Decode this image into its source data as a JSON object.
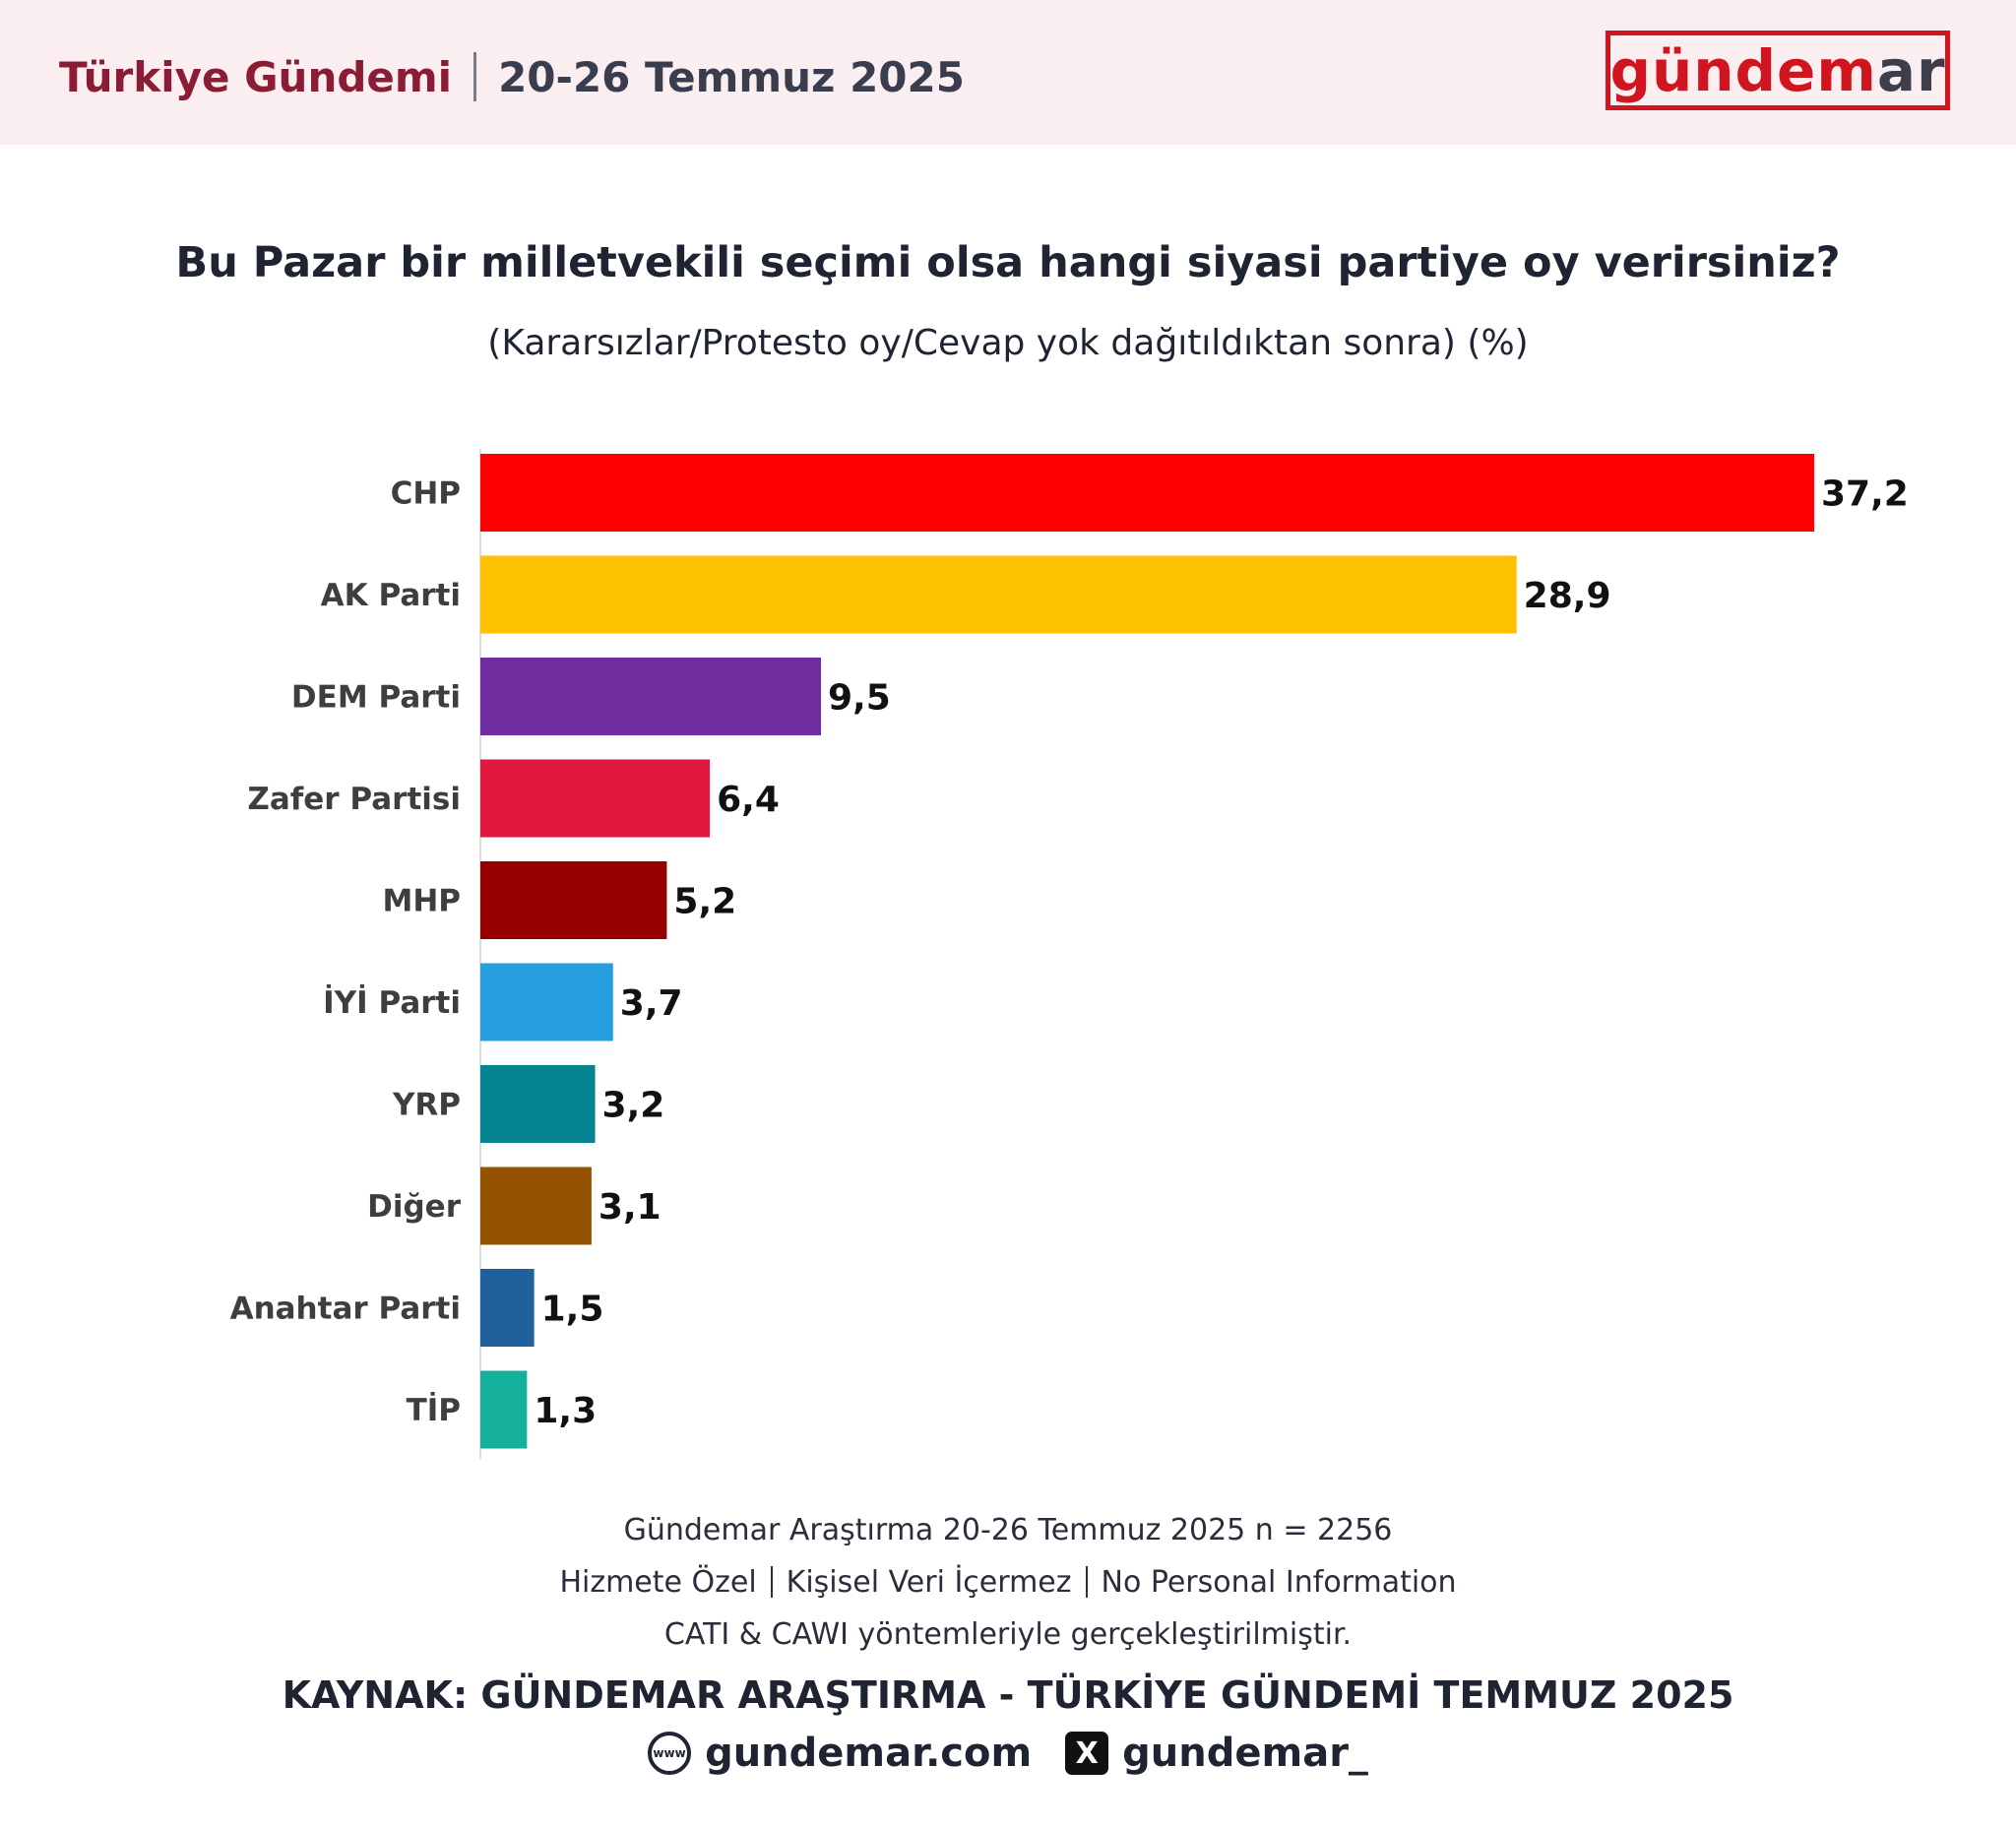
{
  "header": {
    "title": "Türkiye Gündemi",
    "date": "20-26 Temmuz 2025",
    "logo_part1": "gündem",
    "logo_part2": "ar"
  },
  "question": {
    "title": "Bu Pazar bir milletvekili seçimi olsa hangi siyasi partiye oy verirsiniz?",
    "subtitle": "(Kararsızlar/Protesto oy/Cevap yok dağıtıldıktan sonra) (%)"
  },
  "chart_data": {
    "type": "bar",
    "orientation": "horizontal",
    "title": "Bu Pazar bir milletvekili seçimi olsa hangi siyasi partiye oy verirsiniz?",
    "subtitle": "(Kararsızlar/Protesto oy/Cevap yok dağıtıldıktan sonra) (%)",
    "categories": [
      "CHP",
      "AK Parti",
      "DEM Parti",
      "Zafer Partisi",
      "MHP",
      "İYİ Parti",
      "YRP",
      "Diğer",
      "Anahtar Parti",
      "TİP"
    ],
    "values": [
      37.2,
      28.9,
      9.5,
      6.4,
      5.2,
      3.7,
      3.2,
      3.1,
      1.5,
      1.3
    ],
    "value_labels": [
      "37,2",
      "28,9",
      "9,5",
      "6,4",
      "5,2",
      "3,7",
      "3,2",
      "3,1",
      "1,5",
      "1,3"
    ],
    "colors": [
      "#fe0000",
      "#fec200",
      "#6f2da0",
      "#e0173f",
      "#960000",
      "#259fdd",
      "#04858f",
      "#945301",
      "#20609c",
      "#15b09b"
    ],
    "xlim": [
      0,
      37.2
    ],
    "xlabel": "",
    "ylabel": "",
    "grid": false,
    "legend": "none"
  },
  "footer": {
    "line1": "Gündemar Araştırma 20-26 Temmuz 2025 n = 2256",
    "line2_a": "Hizmete Özel",
    "line2_b": "Kişisel Veri İçermez",
    "line2_c": "No Personal Information",
    "line3": "CATI & CAWI yöntemleriyle gerçekleştirilmiştir.",
    "source": "KAYNAK: GÜNDEMAR ARAŞTIRMA - TÜRKİYE GÜNDEMİ TEMMUZ 2025",
    "website": "gundemar.com",
    "handle": "gundemar_",
    "www_icon_text": "www"
  }
}
